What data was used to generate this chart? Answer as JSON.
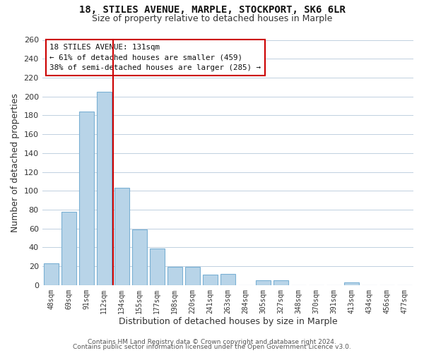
{
  "title1": "18, STILES AVENUE, MARPLE, STOCKPORT, SK6 6LR",
  "title2": "Size of property relative to detached houses in Marple",
  "xlabel": "Distribution of detached houses by size in Marple",
  "ylabel": "Number of detached properties",
  "categories": [
    "48sqm",
    "69sqm",
    "91sqm",
    "112sqm",
    "134sqm",
    "155sqm",
    "177sqm",
    "198sqm",
    "220sqm",
    "241sqm",
    "263sqm",
    "284sqm",
    "305sqm",
    "327sqm",
    "348sqm",
    "370sqm",
    "391sqm",
    "413sqm",
    "434sqm",
    "456sqm",
    "477sqm"
  ],
  "values": [
    23,
    78,
    184,
    205,
    103,
    59,
    39,
    19,
    19,
    11,
    12,
    0,
    5,
    5,
    0,
    0,
    0,
    3,
    0,
    0,
    0
  ],
  "bar_color": "#b8d4e8",
  "bar_edge_color": "#7ab0d4",
  "vline_color": "#cc0000",
  "vline_x_index": 4,
  "annotation_lines": [
    "18 STILES AVENUE: 131sqm",
    "← 61% of detached houses are smaller (459)",
    "38% of semi-detached houses are larger (285) →"
  ],
  "ylim": [
    0,
    260
  ],
  "yticks": [
    0,
    20,
    40,
    60,
    80,
    100,
    120,
    140,
    160,
    180,
    200,
    220,
    240,
    260
  ],
  "footer1": "Contains HM Land Registry data © Crown copyright and database right 2024.",
  "footer2": "Contains public sector information licensed under the Open Government Licence v3.0.",
  "bg_color": "#ffffff",
  "grid_color": "#c0d0e0"
}
